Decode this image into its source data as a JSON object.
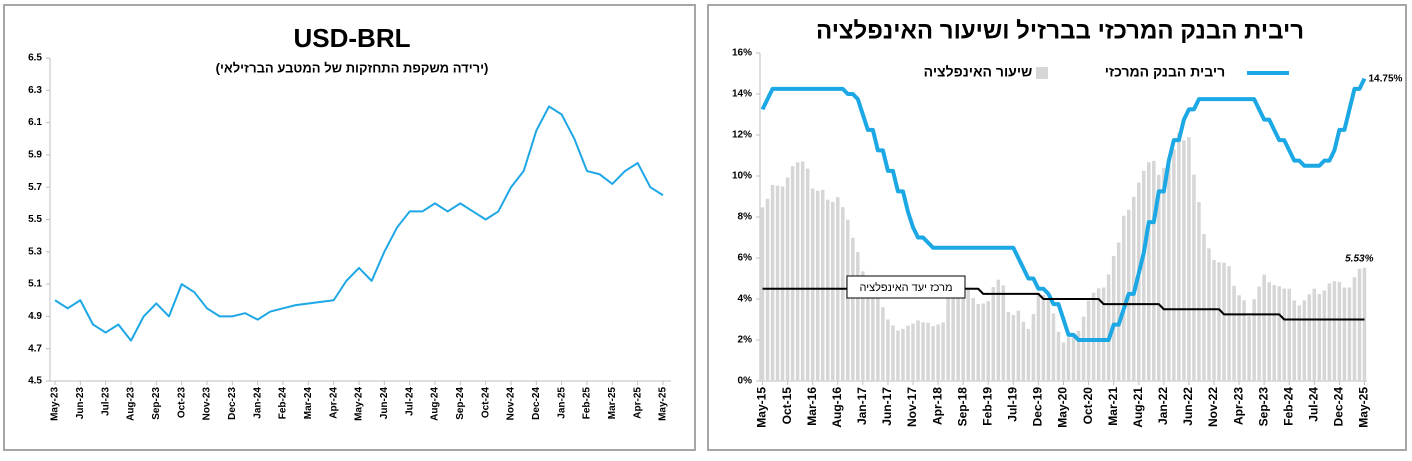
{
  "chart_data": [
    {
      "type": "line",
      "title": "USD-BRL",
      "subtitle": "(ירידה משקפת התחזקות של המטבע הברזילאי)",
      "categories": [
        "May-23",
        null,
        "Jun-23",
        null,
        "Jul-23",
        null,
        "Aug-23",
        null,
        "Sep-23",
        null,
        "Oct-23",
        null,
        "Nov-23",
        null,
        "Dec-23",
        null,
        "Jan-24",
        null,
        "Feb-24",
        null,
        "Mar-24",
        null,
        "Apr-24",
        null,
        "May-24",
        null,
        "Jun-24",
        null,
        "Jul-24",
        null,
        "Aug-24",
        null,
        "Sep-24",
        null,
        "Oct-24",
        null,
        "Nov-24",
        null,
        "Dec-24",
        null,
        "Jan-25",
        null,
        "Feb-25",
        null,
        "Mar-25",
        null,
        "Apr-25",
        null,
        "May-25"
      ],
      "series": [
        {
          "name": "USD-BRL",
          "color": "#1ea7e6",
          "values": [
            5.0,
            4.95,
            5.0,
            4.85,
            4.8,
            4.85,
            4.75,
            4.9,
            4.98,
            4.9,
            5.1,
            5.05,
            4.95,
            4.9,
            4.9,
            4.92,
            4.88,
            4.93,
            4.95,
            4.97,
            4.98,
            4.99,
            5.0,
            5.12,
            5.2,
            5.12,
            5.3,
            5.45,
            5.55,
            5.55,
            5.6,
            5.55,
            5.6,
            5.55,
            5.5,
            5.55,
            5.7,
            5.8,
            6.05,
            6.2,
            6.15,
            6.0,
            5.8,
            5.78,
            5.72,
            5.8,
            5.85,
            5.7,
            5.65
          ]
        }
      ],
      "ylim": [
        4.5,
        6.5
      ],
      "yticks": [
        4.5,
        4.7,
        4.9,
        5.1,
        5.3,
        5.5,
        5.7,
        5.9,
        6.1,
        6.3,
        6.5
      ],
      "grid": false
    },
    {
      "type": "combo",
      "title": "ריבית הבנק המרכזי בברזיל ושיעור האינפלציה",
      "categories": [
        "May-15",
        null,
        null,
        null,
        null,
        "Oct-15",
        null,
        null,
        null,
        null,
        "Mar-16",
        null,
        null,
        null,
        null,
        "Aug-16",
        null,
        null,
        null,
        null,
        "Jan-17",
        null,
        null,
        null,
        null,
        "Jun-17",
        null,
        null,
        null,
        null,
        "Nov-17",
        null,
        null,
        null,
        null,
        "Apr-18",
        null,
        null,
        null,
        null,
        "Sep-18",
        null,
        null,
        null,
        null,
        "Feb-19",
        null,
        null,
        null,
        null,
        "Jul-19",
        null,
        null,
        null,
        null,
        "Dec-19",
        null,
        null,
        null,
        null,
        "May-20",
        null,
        null,
        null,
        null,
        "Oct-20",
        null,
        null,
        null,
        null,
        "Mar-21",
        null,
        null,
        null,
        null,
        "Aug-21",
        null,
        null,
        null,
        null,
        "Jan-22",
        null,
        null,
        null,
        null,
        "Jun-22",
        null,
        null,
        null,
        null,
        "Nov-22",
        null,
        null,
        null,
        null,
        "Apr-23",
        null,
        null,
        null,
        null,
        "Sep-23",
        null,
        null,
        null,
        null,
        "Feb-24",
        null,
        null,
        null,
        null,
        "Jul-24",
        null,
        null,
        null,
        null,
        "Dec-24",
        null,
        null,
        null,
        null,
        "May-25"
      ],
      "series": [
        {
          "name": "ריבית הבנק המרכזי",
          "type": "line",
          "color": "#1ba8e4",
          "values": [
            13.25,
            13.75,
            14.25,
            14.25,
            14.25,
            14.25,
            14.25,
            14.25,
            14.25,
            14.25,
            14.25,
            14.25,
            14.25,
            14.25,
            14.25,
            14.25,
            14.25,
            14.0,
            14.0,
            13.75,
            13.0,
            12.25,
            12.25,
            11.25,
            11.25,
            10.25,
            10.25,
            9.25,
            9.25,
            8.25,
            7.5,
            7.0,
            7.0,
            6.75,
            6.5,
            6.5,
            6.5,
            6.5,
            6.5,
            6.5,
            6.5,
            6.5,
            6.5,
            6.5,
            6.5,
            6.5,
            6.5,
            6.5,
            6.5,
            6.5,
            6.5,
            6.0,
            5.5,
            5.0,
            5.0,
            4.5,
            4.5,
            4.25,
            3.75,
            3.75,
            3.0,
            2.25,
            2.25,
            2.0,
            2.0,
            2.0,
            2.0,
            2.0,
            2.0,
            2.0,
            2.75,
            2.75,
            3.5,
            4.25,
            4.25,
            5.25,
            6.25,
            7.75,
            7.75,
            9.25,
            9.25,
            10.75,
            11.75,
            11.75,
            12.75,
            13.25,
            13.25,
            13.75,
            13.75,
            13.75,
            13.75,
            13.75,
            13.75,
            13.75,
            13.75,
            13.75,
            13.75,
            13.75,
            13.75,
            13.25,
            12.75,
            12.75,
            12.25,
            11.75,
            11.75,
            11.25,
            10.75,
            10.75,
            10.5,
            10.5,
            10.5,
            10.5,
            10.75,
            10.75,
            11.25,
            12.25,
            12.25,
            13.25,
            14.25,
            14.25,
            14.75
          ],
          "value_labels": [
            null,
            null,
            null,
            null,
            null,
            null,
            null,
            null,
            null,
            null,
            null,
            null,
            null,
            null,
            null,
            null,
            null,
            null,
            null,
            null,
            null,
            null,
            null,
            null,
            null,
            null,
            null,
            null,
            null,
            null,
            null,
            null,
            null,
            null,
            null,
            null,
            null,
            null,
            null,
            null,
            null,
            null,
            null,
            null,
            null,
            null,
            null,
            null,
            null,
            null,
            null,
            null,
            null,
            null,
            null,
            null,
            null,
            null,
            null,
            null,
            null,
            null,
            null,
            null,
            null,
            null,
            null,
            null,
            null,
            null,
            null,
            null,
            null,
            null,
            null,
            null,
            null,
            null,
            null,
            null,
            null,
            null,
            null,
            null,
            null,
            null,
            null,
            null,
            null,
            null,
            null,
            null,
            null,
            null,
            null,
            null,
            null,
            null,
            null,
            null,
            null,
            null,
            null,
            null,
            null,
            null,
            null,
            null,
            null,
            null,
            null,
            null,
            null,
            null,
            null,
            null,
            null,
            null,
            null,
            null,
            "14.75%"
          ]
        },
        {
          "name": "שיעור האינפלציה",
          "type": "bar",
          "color": "#d6d6d6",
          "values": [
            8.47,
            8.89,
            9.56,
            9.53,
            9.49,
            9.93,
            10.48,
            10.67,
            10.71,
            10.36,
            9.39,
            9.28,
            9.32,
            8.84,
            8.74,
            8.97,
            8.48,
            7.87,
            6.99,
            6.29,
            5.35,
            4.76,
            4.57,
            4.08,
            3.6,
            3.0,
            2.71,
            2.46,
            2.54,
            2.7,
            2.8,
            2.95,
            2.86,
            2.84,
            2.68,
            2.76,
            2.86,
            4.39,
            4.48,
            4.19,
            4.53,
            4.56,
            4.05,
            3.75,
            3.78,
            3.89,
            4.58,
            4.94,
            4.66,
            3.37,
            3.22,
            3.43,
            2.89,
            2.54,
            3.27,
            4.31,
            4.19,
            4.01,
            3.3,
            2.4,
            1.88,
            2.13,
            2.31,
            2.44,
            3.14,
            3.92,
            4.31,
            4.52,
            4.56,
            5.2,
            6.1,
            6.76,
            8.06,
            8.35,
            8.99,
            9.68,
            10.25,
            10.67,
            10.74,
            10.06,
            10.38,
            10.54,
            11.3,
            12.13,
            11.73,
            11.89,
            10.07,
            8.73,
            7.17,
            6.47,
            5.9,
            5.79,
            5.77,
            5.6,
            4.65,
            4.18,
            3.94,
            3.16,
            3.99,
            4.61,
            5.19,
            4.82,
            4.68,
            4.62,
            4.51,
            4.5,
            3.93,
            3.69,
            3.93,
            4.23,
            4.5,
            4.24,
            4.42,
            4.76,
            4.87,
            4.83,
            4.56,
            4.56,
            5.06,
            5.48,
            5.53
          ],
          "value_labels": [
            null,
            null,
            null,
            null,
            null,
            null,
            null,
            null,
            null,
            null,
            null,
            null,
            null,
            null,
            null,
            null,
            null,
            null,
            null,
            null,
            null,
            null,
            null,
            null,
            null,
            null,
            null,
            null,
            null,
            null,
            null,
            null,
            null,
            null,
            null,
            null,
            null,
            null,
            null,
            null,
            null,
            null,
            null,
            null,
            null,
            null,
            null,
            null,
            null,
            null,
            null,
            null,
            null,
            null,
            null,
            null,
            null,
            null,
            null,
            null,
            null,
            null,
            null,
            null,
            null,
            null,
            null,
            null,
            null,
            null,
            null,
            null,
            null,
            null,
            null,
            null,
            null,
            null,
            null,
            null,
            null,
            null,
            null,
            null,
            null,
            null,
            null,
            null,
            null,
            null,
            null,
            null,
            null,
            null,
            null,
            null,
            null,
            null,
            null,
            null,
            null,
            null,
            null,
            null,
            null,
            null,
            null,
            null,
            null,
            null,
            null,
            null,
            null,
            null,
            null,
            null,
            null,
            null,
            null,
            null,
            "5.53%"
          ]
        },
        {
          "name": "מרכז יעד האינפלציה",
          "type": "line",
          "color": "#000000",
          "values": [
            4.5,
            4.5,
            4.5,
            4.5,
            4.5,
            4.5,
            4.5,
            4.5,
            4.5,
            4.5,
            4.5,
            4.5,
            4.5,
            4.5,
            4.5,
            4.5,
            4.5,
            4.5,
            4.5,
            4.5,
            4.5,
            4.5,
            4.5,
            4.5,
            4.5,
            4.5,
            4.5,
            4.5,
            4.5,
            4.5,
            4.5,
            4.5,
            4.5,
            4.5,
            4.5,
            4.5,
            4.5,
            4.5,
            4.5,
            4.5,
            4.5,
            4.5,
            4.5,
            4.5,
            4.25,
            4.25,
            4.25,
            4.25,
            4.25,
            4.25,
            4.25,
            4.25,
            4.25,
            4.25,
            4.25,
            4.25,
            4.0,
            4.0,
            4.0,
            4.0,
            4.0,
            4.0,
            4.0,
            4.0,
            4.0,
            4.0,
            4.0,
            4.0,
            3.75,
            3.75,
            3.75,
            3.75,
            3.75,
            3.75,
            3.75,
            3.75,
            3.75,
            3.75,
            3.75,
            3.75,
            3.5,
            3.5,
            3.5,
            3.5,
            3.5,
            3.5,
            3.5,
            3.5,
            3.5,
            3.5,
            3.5,
            3.5,
            3.25,
            3.25,
            3.25,
            3.25,
            3.25,
            3.25,
            3.25,
            3.25,
            3.25,
            3.25,
            3.25,
            3.25,
            3.0,
            3.0,
            3.0,
            3.0,
            3.0,
            3.0,
            3.0,
            3.0,
            3.0,
            3.0,
            3.0,
            3.0,
            3.0,
            3.0,
            3.0,
            3.0,
            3.0
          ]
        }
      ],
      "ylim": [
        0,
        16
      ],
      "yticks": [
        {
          "value": 0,
          "label": "0%"
        },
        {
          "value": 2,
          "label": "2%"
        },
        {
          "value": 4,
          "label": "4%"
        },
        {
          "value": 6,
          "label": "6%"
        },
        {
          "value": 8,
          "label": "8%"
        },
        {
          "value": 10,
          "label": "10%"
        },
        {
          "value": 12,
          "label": "12%"
        },
        {
          "value": 14,
          "label": "14%"
        },
        {
          "value": 16,
          "label": "16%"
        }
      ],
      "grid": false
    }
  ]
}
